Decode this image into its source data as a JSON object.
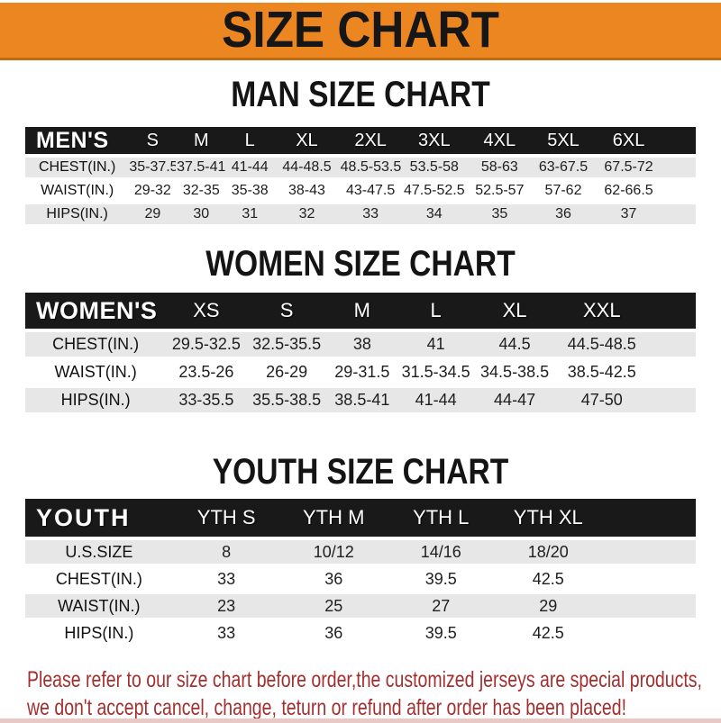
{
  "banner": {
    "title": "SIZE CHART"
  },
  "sections": [
    {
      "heading": "MAN SIZE CHART",
      "label": "MEN'S",
      "columns": [
        "S",
        "M",
        "L",
        "XL",
        "2XL",
        "3XL",
        "4XL",
        "5XL",
        "6XL"
      ],
      "rows": [
        {
          "label": "CHEST(IN.)",
          "values": [
            "35-37.5",
            "37.5-41",
            "41-44",
            "44-48.5",
            "48.5-53.5",
            "53.5-58",
            "58-63",
            "63-67.5",
            "67.5-72"
          ]
        },
        {
          "label": "WAIST(IN.)",
          "values": [
            "29-32",
            "32-35",
            "35-38",
            "38-43",
            "43-47.5",
            "47.5-52.5",
            "52.5-57",
            "57-62",
            "62-66.5"
          ]
        },
        {
          "label": "HIPS(IN.)",
          "values": [
            "29",
            "30",
            "31",
            "32",
            "33",
            "34",
            "35",
            "36",
            "37"
          ]
        }
      ]
    },
    {
      "heading": "WOMEN SIZE CHART",
      "label": "WOMEN'S",
      "columns": [
        "XS",
        "S",
        "M",
        "L",
        "XL",
        "XXL"
      ],
      "rows": [
        {
          "label": "CHEST(IN.)",
          "values": [
            "29.5-32.5",
            "32.5-35.5",
            "38",
            "41",
            "44.5",
            "44.5-48.5"
          ]
        },
        {
          "label": "WAIST(IN.)",
          "values": [
            "23.5-26",
            "26-29",
            "29-31.5",
            "31.5-34.5",
            "34.5-38.5",
            "38.5-42.5"
          ]
        },
        {
          "label": "HIPS(IN.)",
          "values": [
            "33-35.5",
            "35.5-38.5",
            "38.5-41",
            "41-44",
            "44-47",
            "47-50"
          ]
        }
      ]
    },
    {
      "heading": "YOUTH SIZE CHART",
      "label": "YOUTH",
      "columns": [
        "YTH S",
        "YTH M",
        "YTH L",
        "YTH XL"
      ],
      "rows": [
        {
          "label": "U.S.SIZE",
          "values": [
            "8",
            "10/12",
            "14/16",
            "18/20"
          ]
        },
        {
          "label": "CHEST(IN.)",
          "values": [
            "33",
            "36",
            "39.5",
            "42.5"
          ]
        },
        {
          "label": "WAIST(IN.)",
          "values": [
            "23",
            "25",
            "27",
            "29"
          ]
        },
        {
          "label": "HIPS(IN.)",
          "values": [
            "33",
            "36",
            "39.5",
            "42.5"
          ]
        }
      ]
    }
  ],
  "footer": {
    "line1": "Please refer to our size chart before order,the customized jerseys are special products,",
    "line2": "we don't accept cancel, change, teturn or refund after order has been placed!"
  },
  "colors": {
    "banner_orange": "#EC8620",
    "banner_border": "#C06C10",
    "header_black": "#191919",
    "row_gray": "#E7E7E7",
    "row_white": "#FFFFFF",
    "footer_red": "#A23030",
    "title_text": "#161616"
  },
  "chart_data": [
    {
      "type": "table",
      "title": "MAN SIZE CHART",
      "columns": [
        "MEN'S",
        "S",
        "M",
        "L",
        "XL",
        "2XL",
        "3XL",
        "4XL",
        "5XL",
        "6XL"
      ],
      "rows": [
        [
          "CHEST(IN.)",
          "35-37.5",
          "37.5-41",
          "41-44",
          "44-48.5",
          "48.5-53.5",
          "53.5-58",
          "58-63",
          "63-67.5",
          "67.5-72"
        ],
        [
          "WAIST(IN.)",
          "29-32",
          "32-35",
          "35-38",
          "38-43",
          "43-47.5",
          "47.5-52.5",
          "52.5-57",
          "57-62",
          "62-66.5"
        ],
        [
          "HIPS(IN.)",
          "29",
          "30",
          "31",
          "32",
          "33",
          "34",
          "35",
          "36",
          "37"
        ]
      ]
    },
    {
      "type": "table",
      "title": "WOMEN SIZE CHART",
      "columns": [
        "WOMEN'S",
        "XS",
        "S",
        "M",
        "L",
        "XL",
        "XXL"
      ],
      "rows": [
        [
          "CHEST(IN.)",
          "29.5-32.5",
          "32.5-35.5",
          "38",
          "41",
          "44.5",
          "44.5-48.5"
        ],
        [
          "WAIST(IN.)",
          "23.5-26",
          "26-29",
          "29-31.5",
          "31.5-34.5",
          "34.5-38.5",
          "38.5-42.5"
        ],
        [
          "HIPS(IN.)",
          "33-35.5",
          "35.5-38.5",
          "38.5-41",
          "41-44",
          "44-47",
          "47-50"
        ]
      ]
    },
    {
      "type": "table",
      "title": "YOUTH SIZE CHART",
      "columns": [
        "YOUTH",
        "YTH S",
        "YTH M",
        "YTH L",
        "YTH XL"
      ],
      "rows": [
        [
          "U.S.SIZE",
          "8",
          "10/12",
          "14/16",
          "18/20"
        ],
        [
          "CHEST(IN.)",
          "33",
          "36",
          "39.5",
          "42.5"
        ],
        [
          "WAIST(IN.)",
          "23",
          "25",
          "27",
          "29"
        ],
        [
          "HIPS(IN.)",
          "33",
          "36",
          "39.5",
          "42.5"
        ]
      ]
    }
  ]
}
